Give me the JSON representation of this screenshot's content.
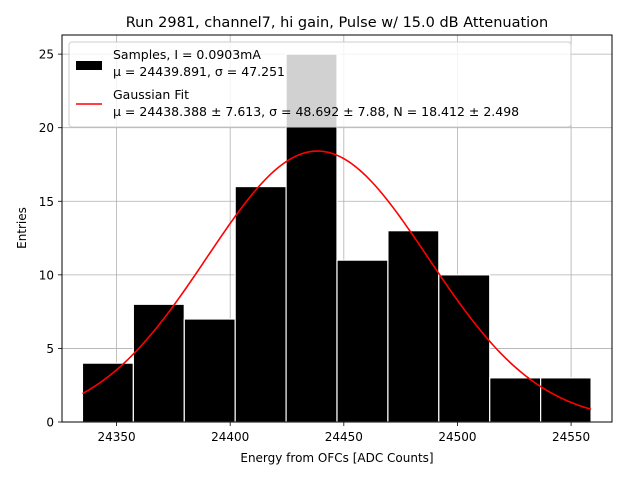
{
  "chart_data": {
    "type": "bar",
    "title": "Run 2981, channel7, hi gain, Pulse w/ 15.0 dB Attenuation",
    "xlabel": "Energy from OFCs [ADC Counts]",
    "ylabel": "Entries",
    "xlim": [
      24326,
      24568
    ],
    "ylim": [
      0,
      26.3
    ],
    "grid": true,
    "x_ticks": [
      24350,
      24400,
      24450,
      24500,
      24550
    ],
    "y_ticks": [
      0,
      5,
      10,
      15,
      20,
      25
    ],
    "histogram": {
      "bin_edges": [
        24335.0,
        24357.4,
        24379.8,
        24402.2,
        24424.6,
        24447.0,
        24469.4,
        24491.8,
        24514.2,
        24536.6,
        24558.8
      ],
      "counts": [
        4,
        8,
        7,
        16,
        25,
        11,
        13,
        10,
        3,
        3
      ],
      "color": "#000000",
      "edge_color": "#ffffff"
    },
    "fit": {
      "type": "gaussian",
      "mu": 24438.388,
      "sigma": 48.692,
      "amplitude": 18.412,
      "x_range": [
        24335,
        24558.8
      ],
      "color": "#ff0000"
    },
    "legend": {
      "position": "top",
      "entries": [
        {
          "kind": "bar",
          "line1": "Samples, I = 0.0903mA",
          "line2": "μ = 24439.891, σ = 47.251"
        },
        {
          "kind": "line",
          "line1": "Gaussian Fit",
          "line2": "μ = 24438.388 ± 7.613, σ = 48.692 ± 7.88, N = 18.412 ± 2.498"
        }
      ]
    }
  }
}
